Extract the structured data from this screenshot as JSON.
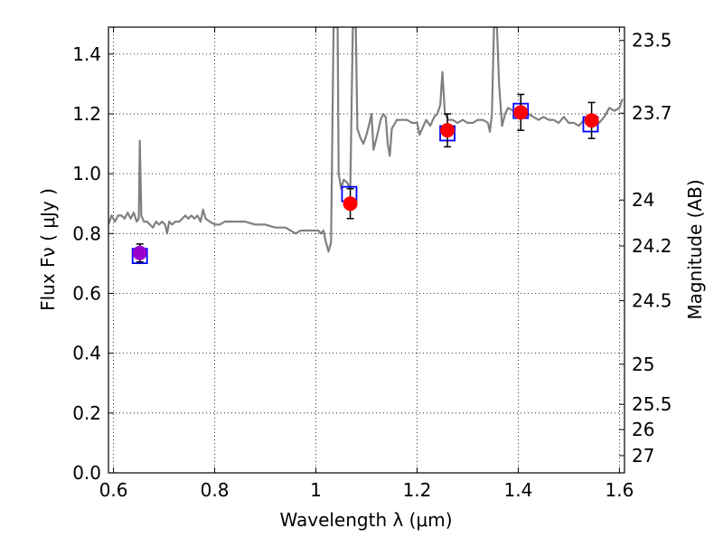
{
  "chart_data": {
    "type": "line",
    "x_axis": {
      "label": "Wavelength λ (μm)",
      "lim": [
        0.59,
        1.61
      ],
      "ticks": [
        0.6,
        0.8,
        1.0,
        1.2,
        1.4,
        1.6
      ],
      "tick_labels": [
        "0.6",
        "0.8",
        "1",
        "1.2",
        "1.4",
        "1.6"
      ]
    },
    "y_axis_left": {
      "label": "Flux Fν ( μJy )",
      "lim": [
        0.0,
        1.49
      ],
      "ticks": [
        0.0,
        0.2,
        0.4,
        0.6,
        0.8,
        1.0,
        1.2,
        1.4
      ],
      "tick_labels": [
        "0.0",
        "0.2",
        "0.4",
        "0.6",
        "0.8",
        "1.0",
        "1.2",
        "1.4"
      ]
    },
    "y_axis_right": {
      "label": "Magnitude (AB)",
      "ticks": [
        23.5,
        23.7,
        24.0,
        24.2,
        24.5,
        25.0,
        25.5,
        26.0,
        27.0
      ],
      "tick_labels": [
        "23.5",
        "23.7",
        "24",
        "24.2",
        "24.5",
        "25",
        "25.5",
        "26",
        "27"
      ]
    },
    "grid": true,
    "series": [
      {
        "kind": "spectrum",
        "color": "#808080",
        "points": [
          [
            0.59,
            0.83
          ],
          [
            0.596,
            0.86
          ],
          [
            0.603,
            0.84
          ],
          [
            0.609,
            0.86
          ],
          [
            0.616,
            0.86
          ],
          [
            0.622,
            0.85
          ],
          [
            0.628,
            0.87
          ],
          [
            0.634,
            0.85
          ],
          [
            0.64,
            0.87
          ],
          [
            0.646,
            0.84
          ],
          [
            0.65,
            0.85
          ],
          [
            0.652,
            1.11
          ],
          [
            0.655,
            0.86
          ],
          [
            0.66,
            0.84
          ],
          [
            0.666,
            0.84
          ],
          [
            0.672,
            0.83
          ],
          [
            0.678,
            0.82
          ],
          [
            0.684,
            0.84
          ],
          [
            0.69,
            0.83
          ],
          [
            0.696,
            0.84
          ],
          [
            0.702,
            0.83
          ],
          [
            0.706,
            0.8
          ],
          [
            0.71,
            0.84
          ],
          [
            0.716,
            0.83
          ],
          [
            0.722,
            0.84
          ],
          [
            0.73,
            0.84
          ],
          [
            0.736,
            0.85
          ],
          [
            0.742,
            0.86
          ],
          [
            0.748,
            0.85
          ],
          [
            0.754,
            0.86
          ],
          [
            0.76,
            0.85
          ],
          [
            0.766,
            0.86
          ],
          [
            0.772,
            0.84
          ],
          [
            0.777,
            0.88
          ],
          [
            0.782,
            0.85
          ],
          [
            0.79,
            0.84
          ],
          [
            0.8,
            0.83
          ],
          [
            0.81,
            0.83
          ],
          [
            0.82,
            0.84
          ],
          [
            0.84,
            0.84
          ],
          [
            0.86,
            0.84
          ],
          [
            0.88,
            0.83
          ],
          [
            0.9,
            0.83
          ],
          [
            0.92,
            0.82
          ],
          [
            0.94,
            0.82
          ],
          [
            0.96,
            0.8
          ],
          [
            0.97,
            0.81
          ],
          [
            0.99,
            0.81
          ],
          [
            1.005,
            0.81
          ],
          [
            1.01,
            0.8
          ],
          [
            1.015,
            0.81
          ],
          [
            1.02,
            0.77
          ],
          [
            1.025,
            0.74
          ],
          [
            1.03,
            0.77
          ],
          [
            1.035,
            1.49
          ],
          [
            1.043,
            1.49
          ],
          [
            1.045,
            1.0
          ],
          [
            1.05,
            0.95
          ],
          [
            1.055,
            0.98
          ],
          [
            1.062,
            0.97
          ],
          [
            1.068,
            0.95
          ],
          [
            1.073,
            1.49
          ],
          [
            1.079,
            1.49
          ],
          [
            1.082,
            1.15
          ],
          [
            1.088,
            1.12
          ],
          [
            1.094,
            1.1
          ],
          [
            1.1,
            1.13
          ],
          [
            1.106,
            1.17
          ],
          [
            1.11,
            1.2
          ],
          [
            1.114,
            1.08
          ],
          [
            1.12,
            1.12
          ],
          [
            1.128,
            1.18
          ],
          [
            1.133,
            1.2
          ],
          [
            1.138,
            1.19
          ],
          [
            1.142,
            1.1
          ],
          [
            1.146,
            1.06
          ],
          [
            1.15,
            1.15
          ],
          [
            1.16,
            1.18
          ],
          [
            1.17,
            1.18
          ],
          [
            1.18,
            1.18
          ],
          [
            1.19,
            1.17
          ],
          [
            1.2,
            1.17
          ],
          [
            1.205,
            1.13
          ],
          [
            1.21,
            1.15
          ],
          [
            1.218,
            1.18
          ],
          [
            1.226,
            1.16
          ],
          [
            1.234,
            1.19
          ],
          [
            1.24,
            1.2
          ],
          [
            1.246,
            1.23
          ],
          [
            1.25,
            1.34
          ],
          [
            1.255,
            1.2
          ],
          [
            1.262,
            1.18
          ],
          [
            1.27,
            1.18
          ],
          [
            1.28,
            1.17
          ],
          [
            1.29,
            1.18
          ],
          [
            1.3,
            1.17
          ],
          [
            1.31,
            1.17
          ],
          [
            1.32,
            1.18
          ],
          [
            1.33,
            1.18
          ],
          [
            1.34,
            1.17
          ],
          [
            1.344,
            1.14
          ],
          [
            1.348,
            1.2
          ],
          [
            1.352,
            1.49
          ],
          [
            1.358,
            1.49
          ],
          [
            1.362,
            1.3
          ],
          [
            1.368,
            1.16
          ],
          [
            1.374,
            1.2
          ],
          [
            1.38,
            1.22
          ],
          [
            1.39,
            1.21
          ],
          [
            1.4,
            1.21
          ],
          [
            1.41,
            1.22
          ],
          [
            1.42,
            1.2
          ],
          [
            1.43,
            1.19
          ],
          [
            1.44,
            1.18
          ],
          [
            1.45,
            1.19
          ],
          [
            1.46,
            1.18
          ],
          [
            1.47,
            1.18
          ],
          [
            1.48,
            1.17
          ],
          [
            1.49,
            1.19
          ],
          [
            1.5,
            1.17
          ],
          [
            1.51,
            1.17
          ],
          [
            1.52,
            1.16
          ],
          [
            1.53,
            1.18
          ],
          [
            1.54,
            1.18
          ],
          [
            1.55,
            1.19
          ],
          [
            1.56,
            1.17
          ],
          [
            1.57,
            1.19
          ],
          [
            1.58,
            1.22
          ],
          [
            1.59,
            1.21
          ],
          [
            1.6,
            1.22
          ],
          [
            1.606,
            1.25
          ]
        ]
      },
      {
        "kind": "model-squares",
        "color": "#0000ff",
        "points": [
          [
            0.652,
            0.725
          ],
          [
            1.066,
            0.932
          ],
          [
            1.26,
            1.135
          ],
          [
            1.405,
            1.21
          ],
          [
            1.543,
            1.165
          ]
        ]
      },
      {
        "kind": "measurements",
        "color": "#ff0000",
        "points": [
          {
            "x": 0.652,
            "y": 0.735,
            "err": 0.03,
            "color": "#9900cc"
          },
          {
            "x": 1.068,
            "y": 0.9,
            "err": 0.05,
            "color": "#ff0000"
          },
          {
            "x": 1.26,
            "y": 1.145,
            "err": 0.055,
            "color": "#ff0000"
          },
          {
            "x": 1.405,
            "y": 1.205,
            "err": 0.06,
            "color": "#ff0000"
          },
          {
            "x": 1.545,
            "y": 1.178,
            "err": 0.06,
            "color": "#ff0000"
          }
        ]
      }
    ]
  }
}
